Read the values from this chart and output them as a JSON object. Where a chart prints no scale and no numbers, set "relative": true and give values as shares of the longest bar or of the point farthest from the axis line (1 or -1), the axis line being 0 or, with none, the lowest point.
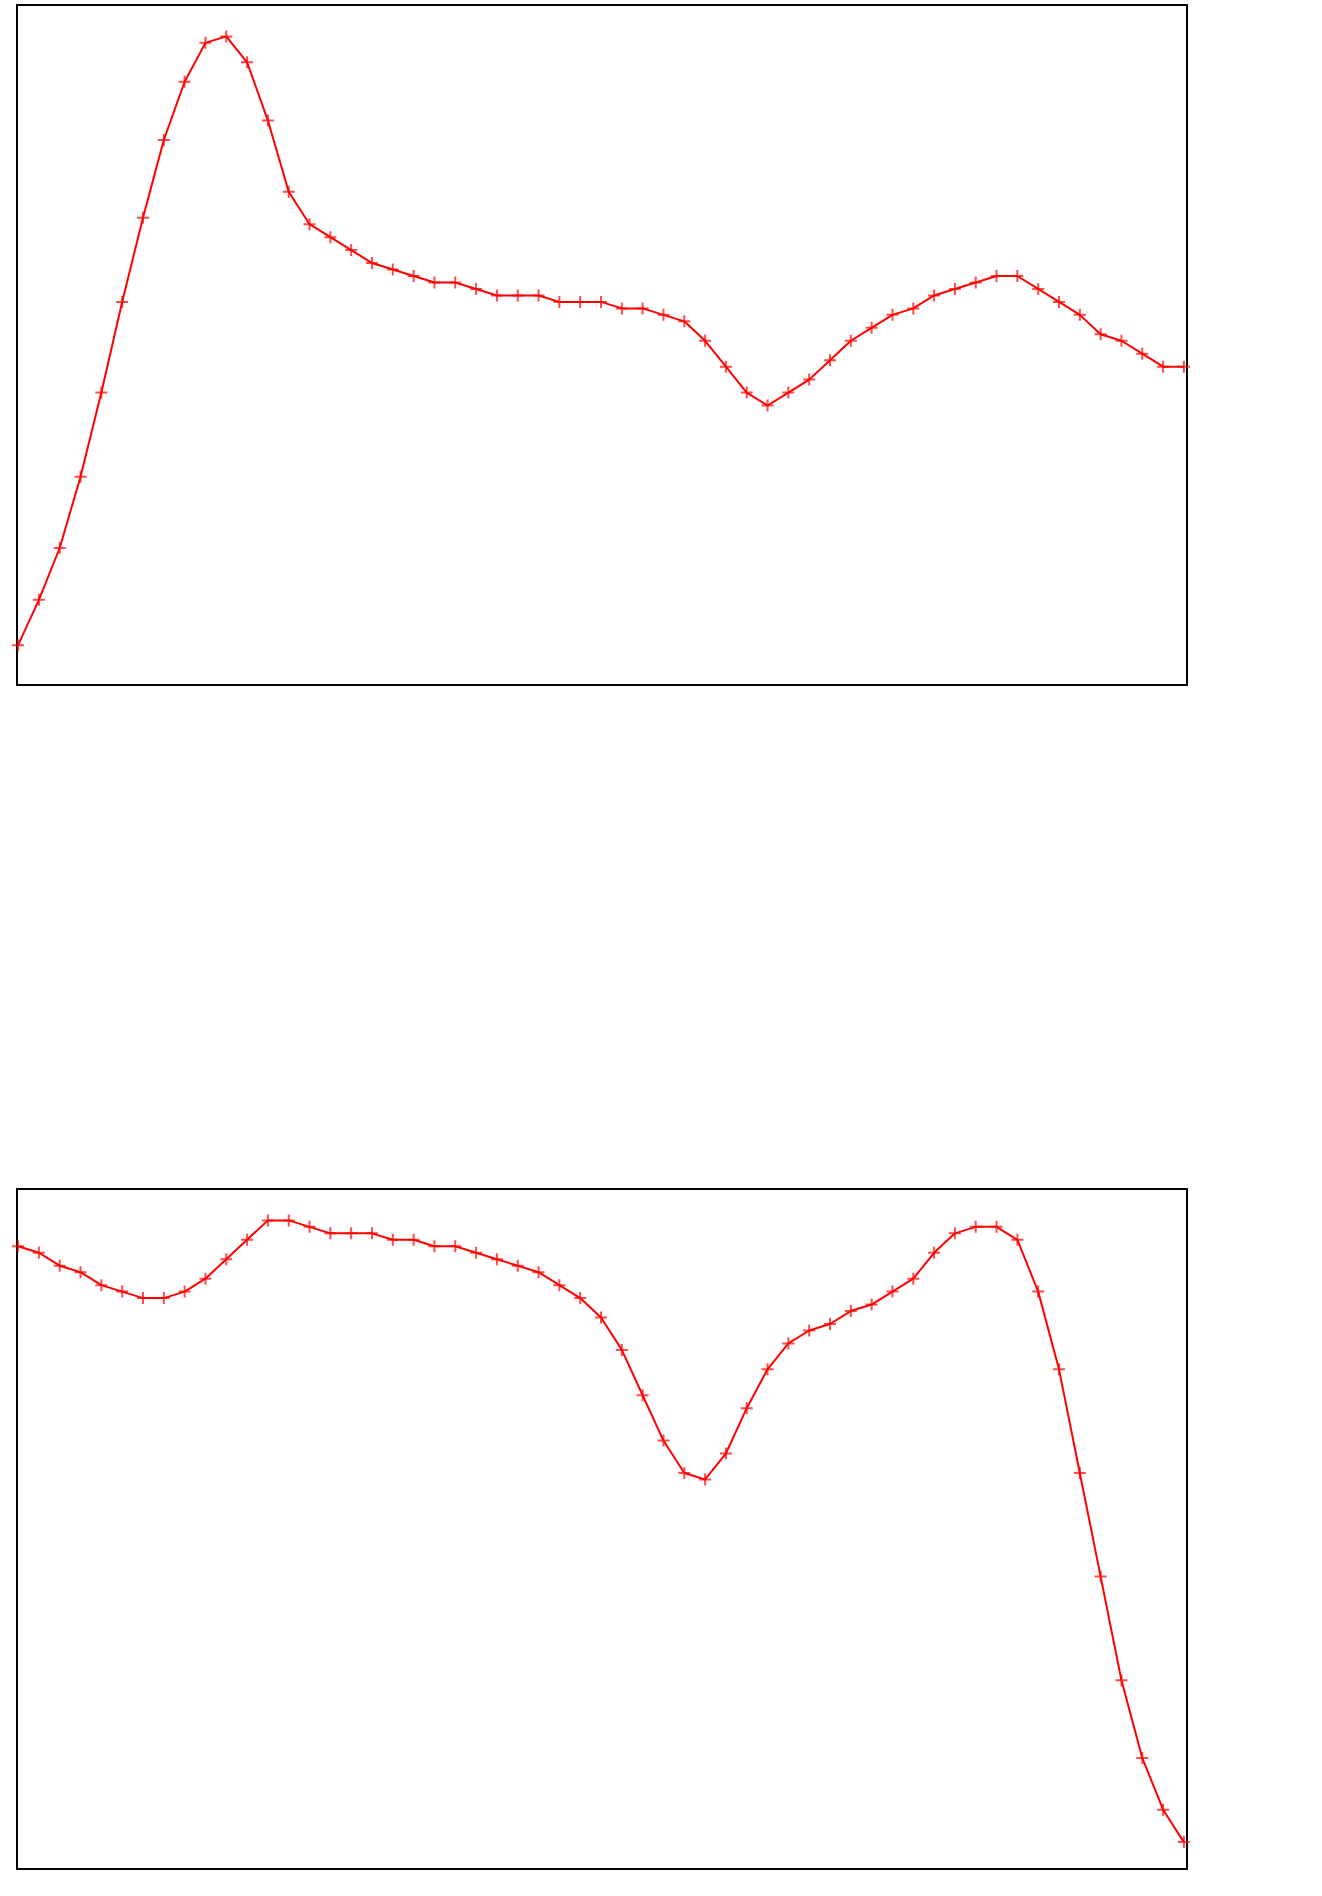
{
  "chart_data": [
    {
      "type": "line",
      "relative": true,
      "marker": "cross",
      "line_style": "solid",
      "grid": false,
      "categories": [
        null,
        null,
        null,
        null,
        null,
        null,
        null,
        null,
        null,
        null,
        null,
        null,
        null,
        null,
        null,
        null,
        null,
        null,
        null,
        null,
        null,
        null,
        null,
        null,
        null,
        null,
        null,
        null,
        null,
        null,
        null,
        null,
        null,
        null,
        null,
        null,
        null,
        null,
        null,
        null,
        null,
        null,
        null,
        null,
        null,
        null,
        null,
        null,
        null,
        null,
        null,
        null,
        null,
        null,
        null,
        null,
        null
      ],
      "series": [
        {
          "color": "#ff0000",
          "values": [
            0.06,
            0.13,
            0.21,
            0.32,
            0.45,
            0.59,
            0.72,
            0.84,
            0.93,
            0.99,
            1,
            0.96,
            0.87,
            0.76,
            0.71,
            0.69,
            0.67,
            0.65,
            0.64,
            0.63,
            0.62,
            0.62,
            0.61,
            0.6,
            0.6,
            0.6,
            0.59,
            0.59,
            0.59,
            0.58,
            0.58,
            0.57,
            0.56,
            0.53,
            0.49,
            0.45,
            0.43,
            0.45,
            0.47,
            0.5,
            0.53,
            0.55,
            0.57,
            0.58,
            0.6,
            0.61,
            0.62,
            0.63,
            0.63,
            0.61,
            0.59,
            0.57,
            0.54,
            0.53,
            0.51,
            0.49,
            0.49
          ]
        }
      ]
    },
    {
      "type": "line",
      "relative": true,
      "marker": "cross",
      "line_style": "solid",
      "grid": false,
      "categories": [
        null,
        null,
        null,
        null,
        null,
        null,
        null,
        null,
        null,
        null,
        null,
        null,
        null,
        null,
        null,
        null,
        null,
        null,
        null,
        null,
        null,
        null,
        null,
        null,
        null,
        null,
        null,
        null,
        null,
        null,
        null,
        null,
        null,
        null,
        null,
        null,
        null,
        null,
        null,
        null,
        null,
        null,
        null,
        null,
        null,
        null,
        null,
        null,
        null,
        null,
        null,
        null,
        null,
        null,
        null,
        null,
        null
      ],
      "series": [
        {
          "color": "#ff0000",
          "values": [
            0.96,
            0.95,
            0.93,
            0.92,
            0.9,
            0.89,
            0.88,
            0.88,
            0.89,
            0.91,
            0.94,
            0.97,
            1,
            1,
            0.99,
            0.98,
            0.98,
            0.98,
            0.97,
            0.97,
            0.96,
            0.96,
            0.95,
            0.94,
            0.93,
            0.92,
            0.9,
            0.88,
            0.85,
            0.8,
            0.73,
            0.66,
            0.61,
            0.6,
            0.64,
            0.71,
            0.77,
            0.81,
            0.83,
            0.84,
            0.86,
            0.87,
            0.89,
            0.91,
            0.95,
            0.98,
            0.99,
            0.99,
            0.97,
            0.89,
            0.77,
            0.61,
            0.45,
            0.29,
            0.17,
            0.09,
            0.04
          ]
        }
      ]
    }
  ]
}
